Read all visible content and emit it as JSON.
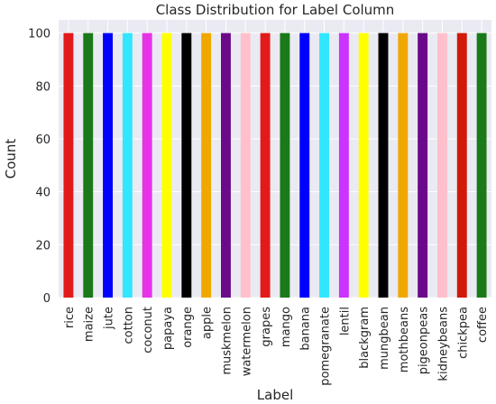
{
  "chart_data": {
    "type": "bar",
    "title": "Class Distribution for Label Column",
    "xlabel": "Label",
    "ylabel": "Count",
    "ylim": [
      0,
      105
    ],
    "yticks": [
      0,
      20,
      40,
      60,
      80,
      100
    ],
    "grid": true,
    "background": "#eaeaf2",
    "categories": [
      "rice",
      "maize",
      "jute",
      "cotton",
      "coconut",
      "papaya",
      "orange",
      "apple",
      "muskmelon",
      "watermelon",
      "grapes",
      "mango",
      "banana",
      "pomegranate",
      "lentil",
      "blackgram",
      "mungbean",
      "mothbeans",
      "pigeonpeas",
      "kidneybeans",
      "chickpea",
      "coffee"
    ],
    "values": [
      100,
      100,
      100,
      100,
      100,
      100,
      100,
      100,
      100,
      100,
      100,
      100,
      100,
      100,
      100,
      100,
      100,
      100,
      100,
      100,
      100,
      100
    ],
    "colors": [
      "#e31a1c",
      "#1a7a1a",
      "#0000ff",
      "#33e6ff",
      "#e633e6",
      "#ffff00",
      "#000000",
      "#f0a800",
      "#6a0a8a",
      "#ffc0cb",
      "#e31a1c",
      "#1a7a1a",
      "#0000ff",
      "#33e6ff",
      "#cc33ff",
      "#ffff00",
      "#000000",
      "#f0a800",
      "#6a0a8a",
      "#ffc0cb",
      "#d01a0a",
      "#1a7a1a"
    ]
  }
}
